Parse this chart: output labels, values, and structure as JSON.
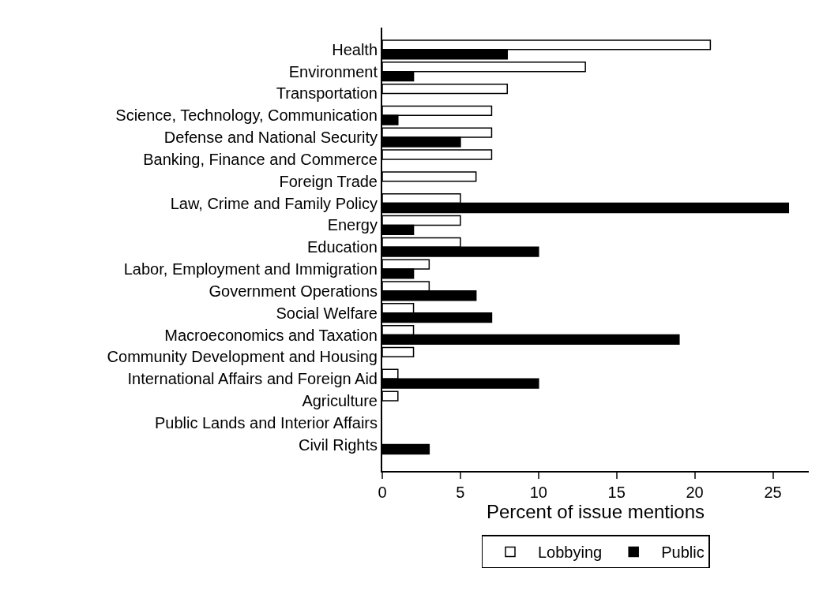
{
  "chart_data": {
    "type": "bar",
    "orientation": "horizontal",
    "xlabel": "Percent of issue mentions",
    "categories": [
      "Health",
      "Environment",
      "Transportation",
      "Science, Technology, Communication",
      "Defense and National Security",
      "Banking, Finance and Commerce",
      "Foreign Trade",
      "Law, Crime and Family Policy",
      "Energy",
      "Education",
      "Labor, Employment and Immigration",
      "Government Operations",
      "Social Welfare",
      "Macroeconomics and Taxation",
      "Community Development and Housing",
      "International Affairs and Foreign Aid",
      "Agriculture",
      "Public Lands and Interior Affairs",
      "Civil Rights"
    ],
    "series": [
      {
        "name": "Lobbying",
        "color": "#ffffff",
        "values": [
          21,
          13,
          8,
          7,
          7,
          7,
          6,
          5,
          5,
          5,
          3,
          3,
          2,
          2,
          2,
          1,
          1,
          0,
          0
        ]
      },
      {
        "name": "Public",
        "color": "#000000",
        "values": [
          8,
          2,
          0,
          1,
          5,
          0,
          0,
          26,
          2,
          10,
          2,
          6,
          7,
          19,
          0,
          10,
          0,
          0,
          3
        ]
      }
    ],
    "xlim": [
      0,
      27.3
    ],
    "xticks": [
      0,
      5,
      10,
      15,
      20,
      25
    ],
    "grid": false,
    "legend": "bottom"
  }
}
